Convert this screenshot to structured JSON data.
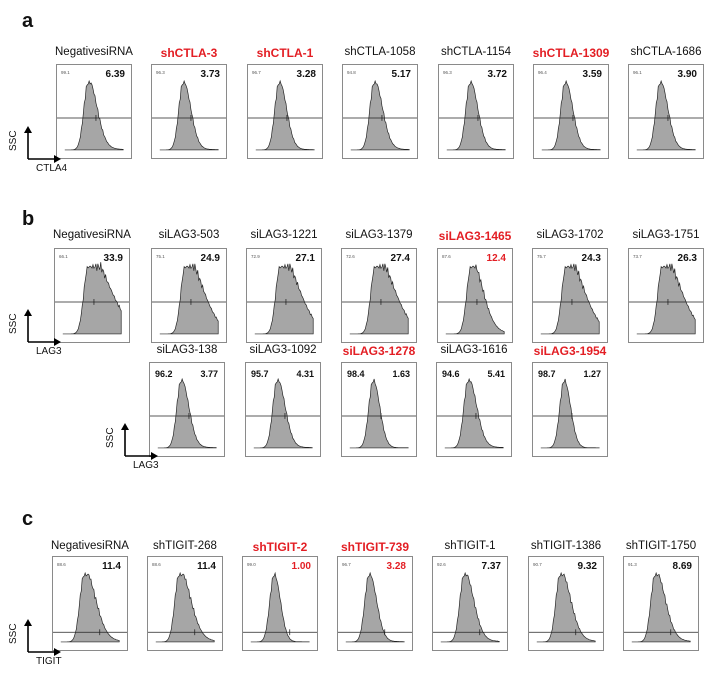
{
  "axes": {
    "ssc": "SSC",
    "ctla4": "CTLA4",
    "lag3": "LAG3",
    "tigit": "TIGIT"
  },
  "panels": [
    {
      "letter": "a",
      "marker": "CTLA4",
      "rows": [
        [
          {
            "label": "NegativesiRNA",
            "red": false,
            "value": "6.39",
            "gate_pct": "99.1"
          },
          {
            "label": "shCTLA-3",
            "red": true,
            "value": "3.73",
            "gate_pct": "96.3"
          },
          {
            "label": "shCTLA-1",
            "red": true,
            "value": "3.28",
            "gate_pct": "96.7"
          },
          {
            "label": "shCTLA-1058",
            "red": false,
            "value": "5.17",
            "gate_pct": "94.8"
          },
          {
            "label": "shCTLA-1154",
            "red": false,
            "value": "3.72",
            "gate_pct": "96.3"
          },
          {
            "label": "shCTLA-1309",
            "red": true,
            "value": "3.59",
            "gate_pct": "96.4"
          },
          {
            "label": "shCTLA-1686",
            "red": false,
            "value": "3.90",
            "gate_pct": "96.1"
          }
        ]
      ]
    },
    {
      "letter": "b",
      "marker": "LAG3",
      "rows": [
        [
          {
            "label": "NegativesiRNA",
            "red": false,
            "value": "33.9",
            "gate_pct": "66.1"
          },
          {
            "label": "siLAG3-503",
            "red": false,
            "value": "24.9",
            "gate_pct": "75.1"
          },
          {
            "label": "siLAG3-1221",
            "red": false,
            "value": "27.1",
            "gate_pct": "72.9"
          },
          {
            "label": "siLAG3-1379",
            "red": false,
            "value": "27.4",
            "gate_pct": "72.6"
          },
          {
            "label": "siLAG3-1465",
            "red": true,
            "value": "12.4",
            "gate_pct": "87.6"
          },
          {
            "label": "siLAG3-1702",
            "red": false,
            "value": "24.3",
            "gate_pct": "75.7"
          },
          {
            "label": "siLAG3-1751",
            "red": false,
            "value": "26.3",
            "gate_pct": "73.7"
          }
        ],
        [
          {
            "label": "siLAG3-138",
            "red": false,
            "value": "3.77",
            "gate_pct": "96.2"
          },
          {
            "label": "siLAG3-1092",
            "red": false,
            "value": "4.31",
            "gate_pct": "95.7"
          },
          {
            "label": "siLAG3-1278",
            "red": true,
            "value": "1.63",
            "gate_pct": "98.4"
          },
          {
            "label": "siLAG3-1616",
            "red": false,
            "value": "5.41",
            "gate_pct": "94.6"
          },
          {
            "label": "siLAG3-1954",
            "red": true,
            "value": "1.27",
            "gate_pct": "98.7"
          }
        ]
      ]
    },
    {
      "letter": "c",
      "marker": "TIGIT",
      "rows": [
        [
          {
            "label": "NegativesiRNA",
            "red": false,
            "value": "11.4",
            "gate_pct": "88.6"
          },
          {
            "label": "shTIGIT-268",
            "red": false,
            "value": "11.4",
            "gate_pct": "88.6"
          },
          {
            "label": "shTIGIT-2",
            "red": true,
            "value": "1.00",
            "gate_pct": "99.0"
          },
          {
            "label": "shTIGIT-739",
            "red": true,
            "value": "3.28",
            "gate_pct": "96.7"
          },
          {
            "label": "shTIGIT-1",
            "red": false,
            "value": "7.37",
            "gate_pct": "92.6"
          },
          {
            "label": "shTIGIT-1386",
            "red": false,
            "value": "9.32",
            "gate_pct": "90.7"
          },
          {
            "label": "shTIGIT-1750",
            "red": false,
            "value": "8.69",
            "gate_pct": "91.3"
          }
        ]
      ]
    }
  ],
  "chart_data": {
    "type": "histogram",
    "panels": [
      {
        "panel": "a",
        "marker": "CTLA4",
        "y_axis": "SSC",
        "samples": [
          "NegativesiRNA",
          "shCTLA-3",
          "shCTLA-1",
          "shCTLA-1058",
          "shCTLA-1154",
          "shCTLA-1309",
          "shCTLA-1686"
        ],
        "positive_pct": [
          6.39,
          3.73,
          3.28,
          5.17,
          3.72,
          3.59,
          3.9
        ],
        "highlighted": [
          "shCTLA-3",
          "shCTLA-1",
          "shCTLA-1309"
        ]
      },
      {
        "panel": "b",
        "marker": "LAG3",
        "y_axis": "SSC",
        "samples": [
          "NegativesiRNA",
          "siLAG3-503",
          "siLAG3-1221",
          "siLAG3-1379",
          "siLAG3-1465",
          "siLAG3-1702",
          "siLAG3-1751",
          "siLAG3-138",
          "siLAG3-1092",
          "siLAG3-1278",
          "siLAG3-1616",
          "siLAG3-1954"
        ],
        "positive_pct": [
          33.9,
          24.9,
          27.1,
          27.4,
          12.4,
          24.3,
          26.3,
          3.77,
          4.31,
          1.63,
          5.41,
          1.27
        ],
        "negative_pct": [
          null,
          null,
          null,
          null,
          null,
          null,
          null,
          96.2,
          95.7,
          98.4,
          94.6,
          98.7
        ],
        "highlighted": [
          "siLAG3-1465",
          "siLAG3-1278",
          "siLAG3-1954"
        ]
      },
      {
        "panel": "c",
        "marker": "TIGIT",
        "y_axis": "SSC",
        "samples": [
          "NegativesiRNA",
          "shTIGIT-268",
          "shTIGIT-2",
          "shTIGIT-739",
          "shTIGIT-1",
          "shTIGIT-1386",
          "shTIGIT-1750"
        ],
        "positive_pct": [
          11.4,
          11.4,
          1.0,
          3.28,
          7.37,
          9.32,
          8.69
        ],
        "highlighted": [
          "shTIGIT-2",
          "shTIGIT-739"
        ]
      }
    ]
  }
}
